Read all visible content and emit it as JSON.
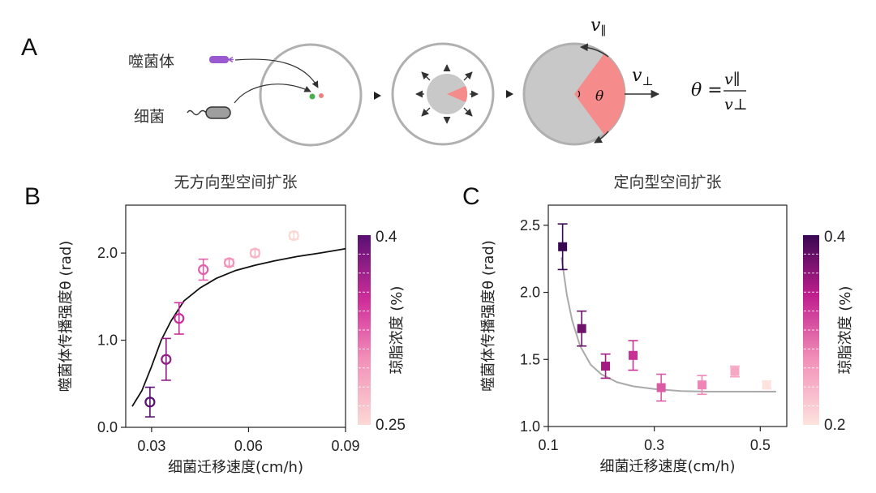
{
  "panel_a": {
    "label": "A",
    "phage_label": "噬菌体",
    "bacteria_label": "细菌",
    "v_parallel": "v",
    "v_parallel_sub": "∥",
    "v_perp": "v",
    "v_perp_sub": "⊥",
    "theta": "θ",
    "formula_lhs": "θ =",
    "formula_num": "v∥",
    "formula_den": "v⊥",
    "colors": {
      "phage": "#9b59d0",
      "bacteria_cell": "#9e9e9e",
      "dot_green": "#4caf50",
      "dot_pink": "#f08080",
      "wedge": "#f68b8b",
      "disk": "#c8c8c8"
    }
  },
  "chart_data": [
    {
      "panel": "B",
      "type": "scatter",
      "title": "无方向型空间扩张",
      "xlabel": "细菌迁移速度(cm/h)",
      "ylabel": "噬菌体传播强度θ (rad)",
      "xlim": [
        0.022,
        0.09
      ],
      "ylim": [
        0.0,
        2.55
      ],
      "xticks": [
        {
          "v": 0.03,
          "t": "0.03"
        },
        {
          "v": 0.06,
          "t": "0.06"
        },
        {
          "v": 0.09,
          "t": "0.09"
        }
      ],
      "yticks": [
        {
          "v": 0.0,
          "t": "0.0"
        },
        {
          "v": 1.0,
          "t": "1.0"
        },
        {
          "v": 2.0,
          "t": "2.0"
        }
      ],
      "marker": "open-circle",
      "points": [
        {
          "x": 0.0295,
          "y": 0.29,
          "err": 0.17,
          "c": 0.4
        },
        {
          "x": 0.0345,
          "y": 0.78,
          "err": 0.24,
          "c": 0.375
        },
        {
          "x": 0.0385,
          "y": 1.25,
          "err": 0.18,
          "c": 0.35
        },
        {
          "x": 0.046,
          "y": 1.81,
          "err": 0.12,
          "c": 0.325
        },
        {
          "x": 0.054,
          "y": 1.89,
          "err": 0.04,
          "c": 0.3
        },
        {
          "x": 0.062,
          "y": 2.0,
          "err": 0.04,
          "c": 0.275
        },
        {
          "x": 0.074,
          "y": 2.2,
          "err": 0.04,
          "c": 0.25
        }
      ],
      "fit": {
        "x": [
          0.024,
          0.027,
          0.03,
          0.033,
          0.036,
          0.04,
          0.045,
          0.05,
          0.056,
          0.062,
          0.068,
          0.075,
          0.082,
          0.09
        ],
        "y": [
          0.24,
          0.42,
          0.7,
          1.0,
          1.22,
          1.45,
          1.6,
          1.71,
          1.8,
          1.86,
          1.91,
          1.96,
          2.0,
          2.05
        ]
      },
      "colorbar": {
        "label": "琼脂浓度 (%)",
        "min": 0.25,
        "max": 0.4,
        "tick_min": "0.25",
        "tick_max": "0.4"
      }
    },
    {
      "panel": "C",
      "type": "scatter",
      "title": "定向型空间扩张",
      "xlabel": "细菌迁移速度(cm/h)",
      "ylabel": "噬菌体传播强度θ (rad)",
      "xlim": [
        0.1,
        0.55
      ],
      "ylim": [
        1.0,
        2.65
      ],
      "xticks": [
        {
          "v": 0.1,
          "t": "0.1"
        },
        {
          "v": 0.3,
          "t": "0.3"
        },
        {
          "v": 0.5,
          "t": "0.5"
        }
      ],
      "yticks": [
        {
          "v": 1.0,
          "t": "1.0"
        },
        {
          "v": 1.5,
          "t": "1.5"
        },
        {
          "v": 2.0,
          "t": "2.0"
        },
        {
          "v": 2.5,
          "t": "2.5"
        }
      ],
      "marker": "filled-square",
      "points": [
        {
          "x": 0.127,
          "y": 2.34,
          "err": 0.17,
          "c": 0.4
        },
        {
          "x": 0.163,
          "y": 1.73,
          "err": 0.13,
          "c": 0.375
        },
        {
          "x": 0.208,
          "y": 1.45,
          "err": 0.09,
          "c": 0.35
        },
        {
          "x": 0.26,
          "y": 1.53,
          "err": 0.11,
          "c": 0.325
        },
        {
          "x": 0.313,
          "y": 1.29,
          "err": 0.1,
          "c": 0.3
        },
        {
          "x": 0.39,
          "y": 1.31,
          "err": 0.07,
          "c": 0.275
        },
        {
          "x": 0.452,
          "y": 1.41,
          "err": 0.04,
          "c": 0.25
        },
        {
          "x": 0.512,
          "y": 1.31,
          "err": 0.03,
          "c": 0.2
        }
      ],
      "fit": {
        "x": [
          0.125,
          0.135,
          0.145,
          0.16,
          0.18,
          0.2,
          0.23,
          0.26,
          0.3,
          0.35,
          0.4,
          0.45,
          0.5,
          0.53
        ],
        "y": [
          2.26,
          1.98,
          1.79,
          1.6,
          1.46,
          1.39,
          1.33,
          1.3,
          1.28,
          1.265,
          1.26,
          1.26,
          1.26,
          1.26
        ]
      },
      "colorbar": {
        "label": "琼脂浓度 (%)",
        "min": 0.2,
        "max": 0.4,
        "tick_min": "0.2",
        "tick_max": "0.4"
      }
    }
  ]
}
